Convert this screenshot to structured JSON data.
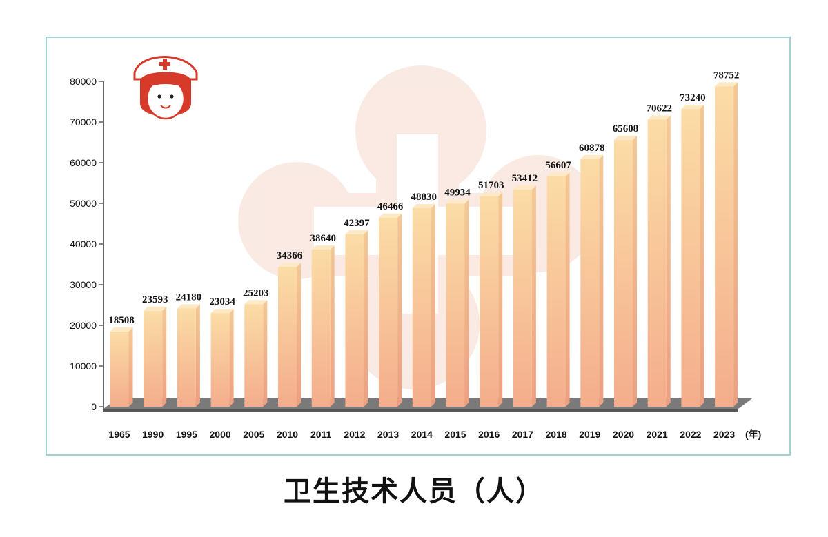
{
  "chart_data": {
    "type": "bar",
    "title": "卫生技术人员（人）",
    "x_unit": "(年)",
    "categories": [
      "1965",
      "1990",
      "1995",
      "2000",
      "2005",
      "2010",
      "2011",
      "2012",
      "2013",
      "2014",
      "2015",
      "2016",
      "2017",
      "2018",
      "2019",
      "2020",
      "2021",
      "2022",
      "2023"
    ],
    "values": [
      18508,
      23593,
      24180,
      23034,
      25203,
      34366,
      38640,
      42397,
      46466,
      48830,
      49934,
      51703,
      53412,
      56607,
      60878,
      65608,
      70622,
      73240,
      78752
    ],
    "yticks": [
      0,
      10000,
      20000,
      30000,
      40000,
      50000,
      60000,
      70000,
      80000
    ],
    "ylim": [
      0,
      80000
    ],
    "grid": false,
    "legend": "none",
    "colors": {
      "bar_top": "#fbdca6",
      "bar_bottom": "#f4ad8c",
      "bar_side": "#f0b98a",
      "bar_cap": "#fde9c6",
      "floor": "#7a7a7a",
      "frame": "#9fd3d8",
      "watermark": "#f6d9cd",
      "logo_red": "#d63a2a"
    },
    "icons": [
      "nurse-icon",
      "red-cross-watermark-icon"
    ]
  }
}
